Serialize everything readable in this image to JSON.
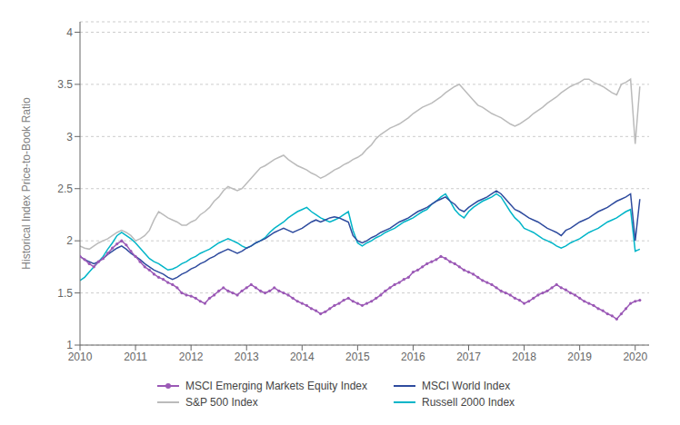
{
  "chart_data": {
    "type": "line",
    "ylabel": "Historical Index Price-to-Book Ratio",
    "xlim": [
      2010.0,
      2020.25
    ],
    "ylim": [
      1.0,
      4.1
    ],
    "xticks": [
      2010,
      2011,
      2012,
      2013,
      2014,
      2015,
      2016,
      2017,
      2018,
      2019,
      2020
    ],
    "yticks": [
      1,
      1.5,
      2,
      2.5,
      3,
      3.5,
      4
    ],
    "grid": "y",
    "legend": "bottom",
    "x": [
      2010.0,
      2010.0833333333,
      2010.1666666667,
      2010.25,
      2010.3333333333,
      2010.4166666667,
      2010.5,
      2010.5833333333,
      2010.6666666667,
      2010.75,
      2010.8333333333,
      2010.9166666667,
      2011.0,
      2011.0833333333,
      2011.1666666667,
      2011.25,
      2011.3333333333,
      2011.4166666667,
      2011.5,
      2011.5833333333,
      2011.6666666667,
      2011.75,
      2011.8333333333,
      2011.9166666667,
      2012.0,
      2012.0833333333,
      2012.1666666667,
      2012.25,
      2012.3333333333,
      2012.4166666667,
      2012.5,
      2012.5833333333,
      2012.6666666667,
      2012.75,
      2012.8333333333,
      2012.9166666667,
      2013.0,
      2013.0833333333,
      2013.1666666667,
      2013.25,
      2013.3333333333,
      2013.4166666667,
      2013.5,
      2013.5833333333,
      2013.6666666667,
      2013.75,
      2013.8333333333,
      2013.9166666667,
      2014.0,
      2014.0833333333,
      2014.1666666667,
      2014.25,
      2014.3333333333,
      2014.4166666667,
      2014.5,
      2014.5833333333,
      2014.6666666667,
      2014.75,
      2014.8333333333,
      2014.9166666667,
      2015.0,
      2015.0833333333,
      2015.1666666667,
      2015.25,
      2015.3333333333,
      2015.4166666667,
      2015.5,
      2015.5833333333,
      2015.6666666667,
      2015.75,
      2015.8333333333,
      2015.9166666667,
      2016.0,
      2016.0833333333,
      2016.1666666667,
      2016.25,
      2016.3333333333,
      2016.4166666667,
      2016.5,
      2016.5833333333,
      2016.6666666667,
      2016.75,
      2016.8333333333,
      2016.9166666667,
      2017.0,
      2017.0833333333,
      2017.1666666667,
      2017.25,
      2017.3333333333,
      2017.4166666667,
      2017.5,
      2017.5833333333,
      2017.6666666667,
      2017.75,
      2017.8333333333,
      2017.9166666667,
      2018.0,
      2018.0833333333,
      2018.1666666667,
      2018.25,
      2018.3333333333,
      2018.4166666667,
      2018.5,
      2018.5833333333,
      2018.6666666667,
      2018.75,
      2018.8333333333,
      2018.9166666667,
      2019.0,
      2019.0833333333,
      2019.1666666667,
      2019.25,
      2019.3333333333,
      2019.4166666667,
      2019.5,
      2019.5833333333,
      2019.6666666667,
      2019.75,
      2019.8333333333,
      2019.9166666667,
      2020.0,
      2020.0833333333
    ],
    "series": [
      {
        "name": "MSCI Emerging Markets Equity Index",
        "color": "#9B59B6",
        "marker": "circle",
        "values": [
          1.85,
          1.82,
          1.78,
          1.75,
          1.8,
          1.83,
          1.88,
          1.93,
          1.97,
          2.0,
          1.96,
          1.9,
          1.85,
          1.8,
          1.75,
          1.72,
          1.68,
          1.65,
          1.63,
          1.6,
          1.58,
          1.55,
          1.5,
          1.48,
          1.47,
          1.45,
          1.42,
          1.4,
          1.45,
          1.48,
          1.52,
          1.55,
          1.52,
          1.5,
          1.48,
          1.52,
          1.55,
          1.58,
          1.55,
          1.52,
          1.5,
          1.52,
          1.55,
          1.52,
          1.5,
          1.48,
          1.45,
          1.42,
          1.4,
          1.38,
          1.35,
          1.33,
          1.3,
          1.32,
          1.35,
          1.38,
          1.4,
          1.43,
          1.45,
          1.42,
          1.4,
          1.38,
          1.4,
          1.42,
          1.45,
          1.48,
          1.52,
          1.55,
          1.58,
          1.6,
          1.63,
          1.65,
          1.7,
          1.72,
          1.75,
          1.78,
          1.8,
          1.82,
          1.85,
          1.83,
          1.8,
          1.78,
          1.75,
          1.72,
          1.7,
          1.68,
          1.65,
          1.62,
          1.6,
          1.58,
          1.55,
          1.52,
          1.5,
          1.48,
          1.45,
          1.43,
          1.4,
          1.42,
          1.45,
          1.48,
          1.5,
          1.52,
          1.55,
          1.58,
          1.55,
          1.53,
          1.5,
          1.48,
          1.45,
          1.42,
          1.4,
          1.38,
          1.35,
          1.33,
          1.3,
          1.28,
          1.25,
          1.3,
          1.35,
          1.4,
          1.42,
          1.43
        ]
      },
      {
        "name": "MSCI World Index",
        "color": "#2E4B9E",
        "values": [
          1.85,
          1.82,
          1.8,
          1.78,
          1.8,
          1.83,
          1.87,
          1.9,
          1.93,
          1.95,
          1.92,
          1.88,
          1.85,
          1.82,
          1.78,
          1.75,
          1.72,
          1.7,
          1.68,
          1.65,
          1.63,
          1.65,
          1.68,
          1.7,
          1.73,
          1.75,
          1.78,
          1.8,
          1.83,
          1.85,
          1.88,
          1.9,
          1.92,
          1.9,
          1.88,
          1.9,
          1.93,
          1.95,
          1.98,
          2.0,
          2.02,
          2.05,
          2.08,
          2.1,
          2.12,
          2.1,
          2.08,
          2.1,
          2.12,
          2.15,
          2.18,
          2.2,
          2.18,
          2.2,
          2.22,
          2.23,
          2.22,
          2.2,
          2.18,
          2.05,
          2.0,
          1.98,
          2.0,
          2.03,
          2.05,
          2.08,
          2.1,
          2.12,
          2.15,
          2.18,
          2.2,
          2.22,
          2.25,
          2.28,
          2.3,
          2.32,
          2.35,
          2.38,
          2.4,
          2.42,
          2.38,
          2.35,
          2.3,
          2.28,
          2.32,
          2.35,
          2.38,
          2.4,
          2.42,
          2.45,
          2.48,
          2.45,
          2.4,
          2.35,
          2.3,
          2.28,
          2.25,
          2.22,
          2.2,
          2.18,
          2.15,
          2.12,
          2.1,
          2.08,
          2.05,
          2.1,
          2.12,
          2.15,
          2.18,
          2.2,
          2.22,
          2.25,
          2.28,
          2.3,
          2.32,
          2.35,
          2.38,
          2.4,
          2.42,
          2.45,
          2.0,
          2.4
        ]
      },
      {
        "name": "S&P 500 Index",
        "color": "#BBBBBB",
        "values": [
          1.95,
          1.93,
          1.92,
          1.95,
          1.98,
          2.0,
          2.02,
          2.05,
          2.08,
          2.1,
          2.08,
          2.05,
          2.0,
          2.02,
          2.05,
          2.1,
          2.2,
          2.28,
          2.25,
          2.22,
          2.2,
          2.18,
          2.15,
          2.15,
          2.18,
          2.2,
          2.25,
          2.28,
          2.32,
          2.38,
          2.42,
          2.48,
          2.52,
          2.5,
          2.48,
          2.5,
          2.55,
          2.6,
          2.65,
          2.7,
          2.72,
          2.75,
          2.78,
          2.8,
          2.82,
          2.78,
          2.75,
          2.72,
          2.7,
          2.68,
          2.65,
          2.63,
          2.6,
          2.62,
          2.65,
          2.68,
          2.7,
          2.73,
          2.75,
          2.78,
          2.8,
          2.83,
          2.88,
          2.92,
          2.98,
          3.02,
          3.05,
          3.08,
          3.1,
          3.12,
          3.15,
          3.18,
          3.22,
          3.25,
          3.28,
          3.3,
          3.32,
          3.35,
          3.38,
          3.42,
          3.45,
          3.48,
          3.5,
          3.45,
          3.4,
          3.35,
          3.3,
          3.28,
          3.25,
          3.22,
          3.2,
          3.18,
          3.15,
          3.12,
          3.1,
          3.12,
          3.15,
          3.18,
          3.22,
          3.25,
          3.28,
          3.32,
          3.35,
          3.38,
          3.42,
          3.45,
          3.48,
          3.5,
          3.52,
          3.55,
          3.55,
          3.52,
          3.5,
          3.48,
          3.45,
          3.42,
          3.4,
          3.5,
          3.52,
          3.55,
          2.93,
          3.48
        ]
      },
      {
        "name": "Russell 2000 Index",
        "color": "#00B5C8",
        "values": [
          1.62,
          1.65,
          1.7,
          1.75,
          1.8,
          1.85,
          1.92,
          1.98,
          2.05,
          2.08,
          2.05,
          2.02,
          1.98,
          1.93,
          1.88,
          1.83,
          1.8,
          1.78,
          1.75,
          1.72,
          1.73,
          1.75,
          1.78,
          1.8,
          1.83,
          1.85,
          1.88,
          1.9,
          1.92,
          1.95,
          1.98,
          2.0,
          2.02,
          2.0,
          1.98,
          1.95,
          1.93,
          1.95,
          1.98,
          2.0,
          2.03,
          2.08,
          2.12,
          2.15,
          2.18,
          2.22,
          2.25,
          2.28,
          2.3,
          2.32,
          2.28,
          2.25,
          2.22,
          2.2,
          2.18,
          2.2,
          2.22,
          2.25,
          2.28,
          2.1,
          1.98,
          1.95,
          1.98,
          2.0,
          2.03,
          2.05,
          2.08,
          2.1,
          2.12,
          2.15,
          2.18,
          2.2,
          2.22,
          2.25,
          2.28,
          2.3,
          2.35,
          2.38,
          2.42,
          2.45,
          2.38,
          2.3,
          2.25,
          2.22,
          2.28,
          2.32,
          2.35,
          2.38,
          2.4,
          2.42,
          2.45,
          2.42,
          2.35,
          2.28,
          2.22,
          2.18,
          2.12,
          2.1,
          2.08,
          2.05,
          2.02,
          2.0,
          1.98,
          1.95,
          1.93,
          1.95,
          1.98,
          2.0,
          2.02,
          2.05,
          2.08,
          2.1,
          2.12,
          2.15,
          2.18,
          2.2,
          2.22,
          2.25,
          2.28,
          2.3,
          1.9,
          1.92
        ]
      }
    ]
  }
}
